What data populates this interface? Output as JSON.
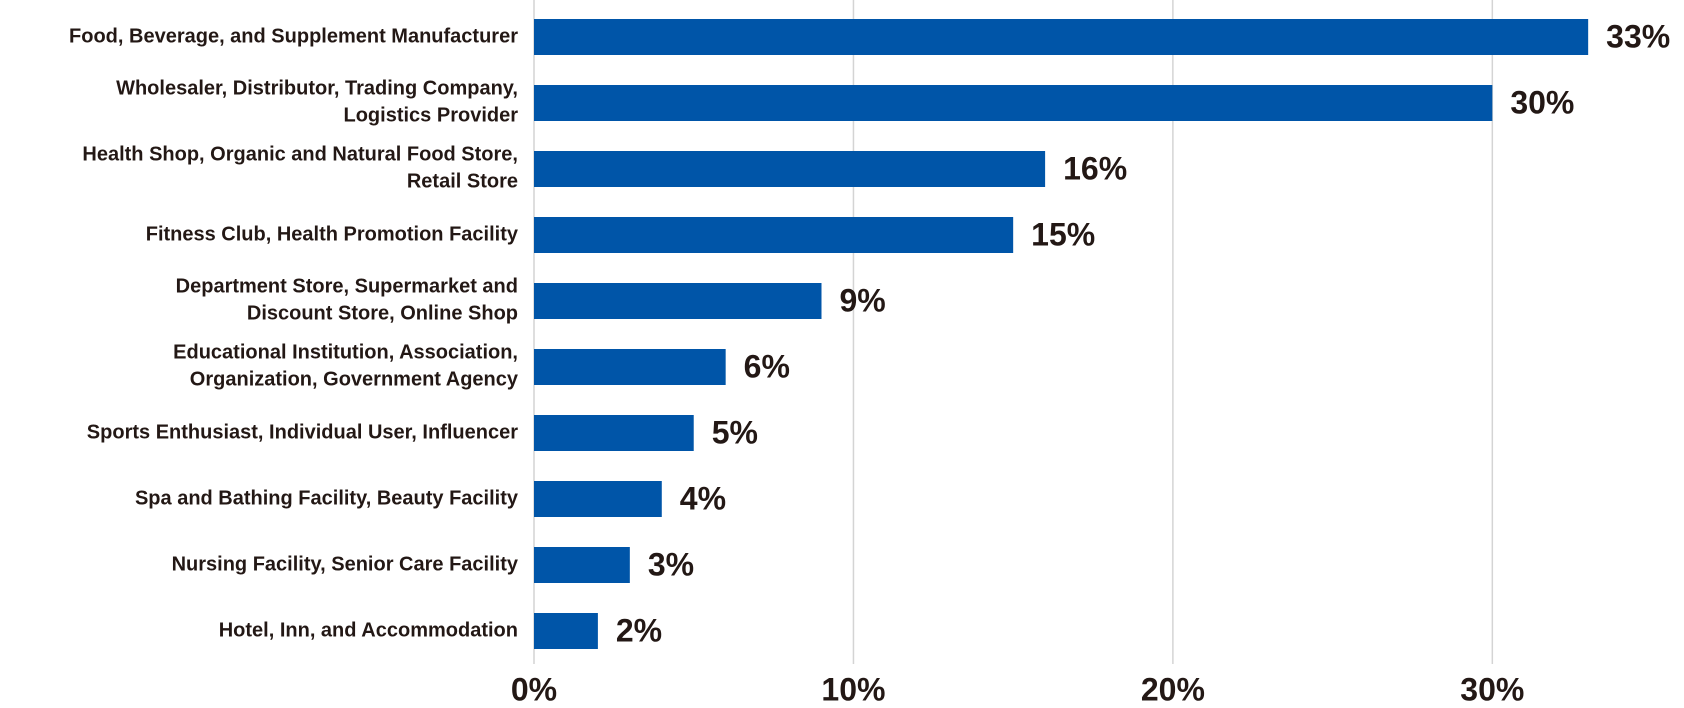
{
  "chart_data": {
    "type": "bar",
    "orientation": "horizontal",
    "categories": [
      "Food, Beverage, and Supplement Manufacturer",
      "Wholesaler, Distributor, Trading Company,\nLogistics Provider",
      "Health Shop, Organic and Natural Food Store,\nRetail Store",
      "Fitness Club, Health Promotion Facility",
      "Department Store, Supermarket and\nDiscount Store, Online Shop",
      "Educational Institution, Association,\nOrganization, Government Agency",
      "Sports Enthusiast, Individual User, Influencer",
      "Spa and Bathing Facility, Beauty Facility",
      "Nursing Facility, Senior Care Facility",
      "Hotel, Inn, and Accommodation"
    ],
    "values": [
      33,
      30,
      16,
      15,
      9,
      6,
      5,
      4,
      3,
      2
    ],
    "value_labels": [
      "33%",
      "30%",
      "16%",
      "15%",
      "9%",
      "6%",
      "5%",
      "4%",
      "3%",
      "2%"
    ],
    "color": "#0055a8",
    "xlim": [
      0,
      36
    ],
    "xticks": [
      {
        "value": 0,
        "label": "0%"
      },
      {
        "value": 10,
        "label": "10%"
      },
      {
        "value": 20,
        "label": "20%"
      },
      {
        "value": 30,
        "label": "30%"
      }
    ],
    "grid": true
  }
}
